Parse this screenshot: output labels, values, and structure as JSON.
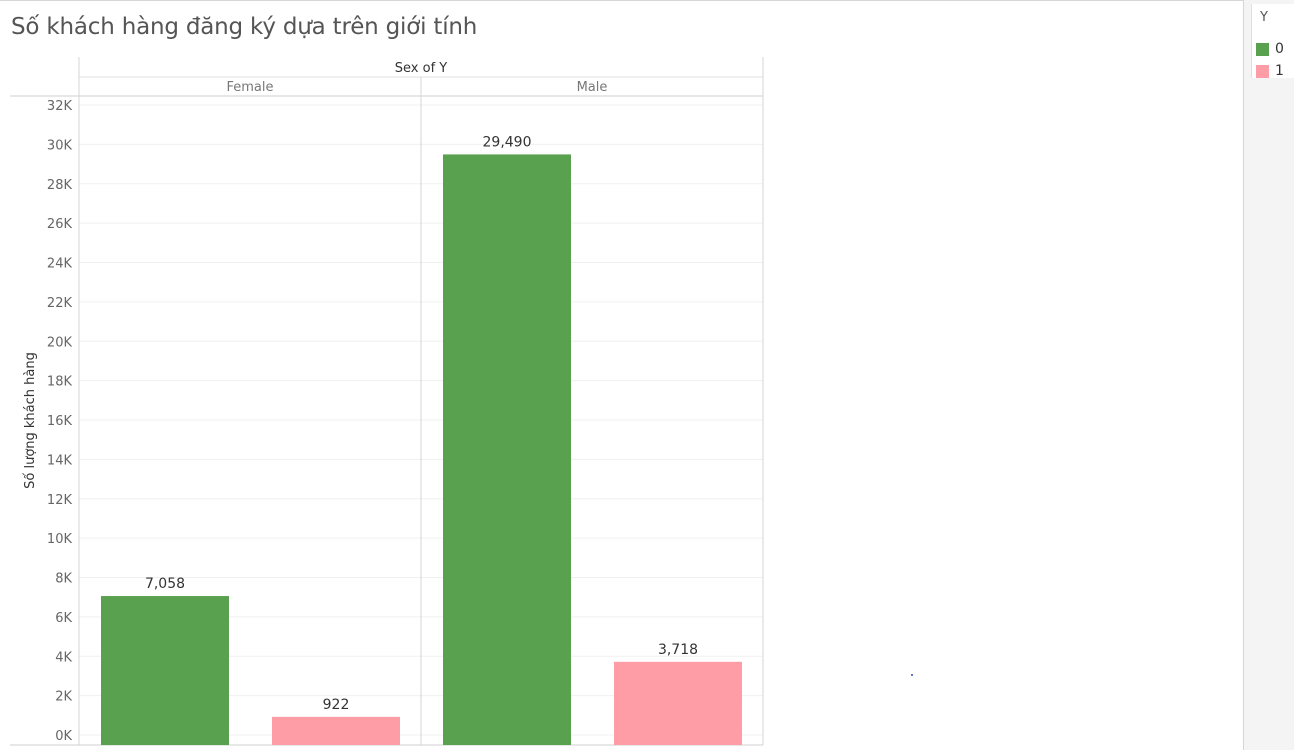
{
  "title": "Số khách hàng đăng ký dựa trên giới tính",
  "legend": {
    "title": "Y",
    "items": [
      {
        "label": "0",
        "color": "#59a14f"
      },
      {
        "label": "1",
        "color": "#ff9da7"
      }
    ]
  },
  "chart_data": {
    "type": "bar",
    "title": "Số khách hàng đăng ký dựa trên giới tính",
    "column_header": "Sex of Y",
    "categories": [
      "Female",
      "Male"
    ],
    "ylabel": "Số lượng khách hàng",
    "ylim": [
      0,
      32000
    ],
    "y_ticks": [
      {
        "value": 0,
        "label": "0K"
      },
      {
        "value": 2000,
        "label": "2K"
      },
      {
        "value": 4000,
        "label": "4K"
      },
      {
        "value": 6000,
        "label": "6K"
      },
      {
        "value": 8000,
        "label": "8K"
      },
      {
        "value": 10000,
        "label": "10K"
      },
      {
        "value": 12000,
        "label": "12K"
      },
      {
        "value": 14000,
        "label": "14K"
      },
      {
        "value": 16000,
        "label": "16K"
      },
      {
        "value": 18000,
        "label": "18K"
      },
      {
        "value": 20000,
        "label": "20K"
      },
      {
        "value": 22000,
        "label": "22K"
      },
      {
        "value": 24000,
        "label": "24K"
      },
      {
        "value": 26000,
        "label": "26K"
      },
      {
        "value": 28000,
        "label": "28K"
      },
      {
        "value": 30000,
        "label": "30K"
      },
      {
        "value": 32000,
        "label": "32K"
      }
    ],
    "series": [
      {
        "name": "0",
        "color": "#59a14f",
        "values": [
          7058,
          29490
        ],
        "labels": [
          "7,058",
          "29,490"
        ]
      },
      {
        "name": "1",
        "color": "#ff9da7",
        "values": [
          922,
          3718
        ],
        "labels": [
          "922",
          "3,718"
        ]
      }
    ],
    "grid": true,
    "legend_position": "top-right"
  }
}
